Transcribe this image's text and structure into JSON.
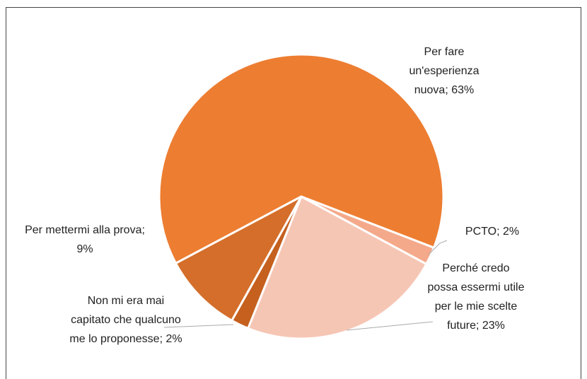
{
  "chart_data": {
    "type": "pie",
    "values": [
      63,
      2,
      23,
      2,
      9
    ],
    "value_labels": [
      "Per fare un'esperienza nuova; 63%",
      "PCTO; 2%",
      "Perché credo possa essermi utile per le mie scelte future; 23%",
      "Non mi era mai capitato che qualcuno me lo proponesse; 2%",
      "Per mettermi alla prova; 9%"
    ],
    "colors": [
      "#ED7D31",
      "#F4A98A",
      "#F6C6B5",
      "#C5601F",
      "#D46E2A"
    ]
  }
}
